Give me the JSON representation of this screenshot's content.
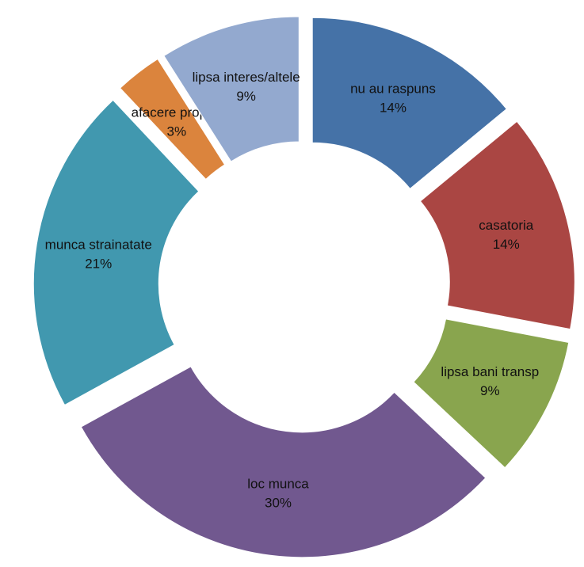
{
  "chart_data": {
    "type": "doughnut",
    "categories": [
      "nu au raspuns",
      "casatoria",
      "lipsa bani transp",
      "loc munca",
      "munca strainatate",
      "afacere proprie",
      "lipsa interes/altele"
    ],
    "values": [
      14,
      14,
      9,
      30,
      21,
      3,
      9
    ],
    "value_labels": [
      "14%",
      "14%",
      "9%",
      "30%",
      "21%",
      "3%",
      "9%"
    ],
    "colors": [
      "#4572a7",
      "#aa4643",
      "#89a54e",
      "#71588f",
      "#4198af",
      "#db843d",
      "#93a9cf"
    ],
    "exploded": true
  }
}
